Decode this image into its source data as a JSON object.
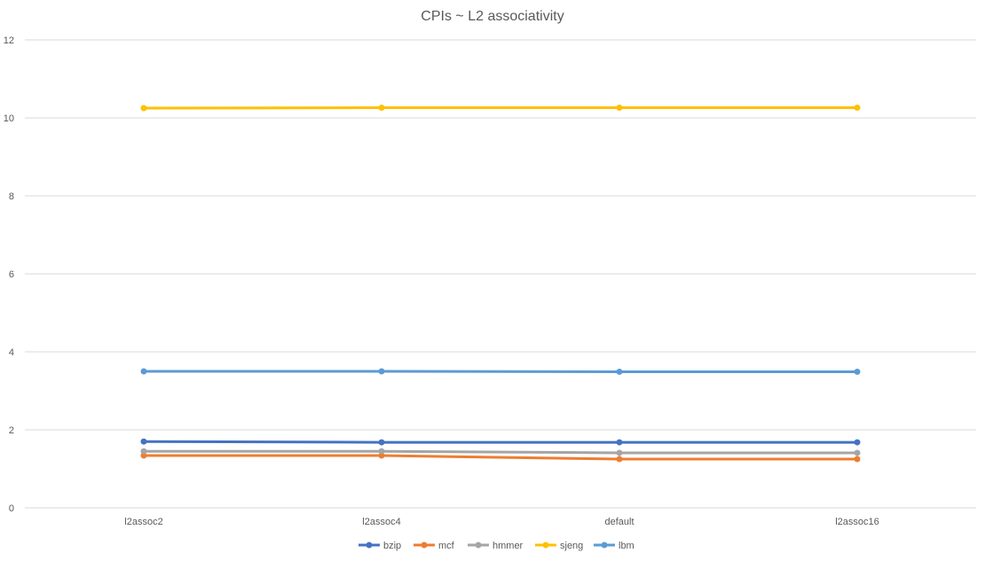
{
  "chart_data": {
    "type": "line",
    "title": "CPIs ~ L2 associativity",
    "xlabel": "",
    "ylabel": "",
    "categories": [
      "l2assoc2",
      "l2assoc4",
      "default",
      "l2assoc16"
    ],
    "ylim": [
      0,
      12
    ],
    "yticks": [
      0,
      2,
      4,
      6,
      8,
      10,
      12
    ],
    "grid": true,
    "legend_position": "bottom",
    "series": [
      {
        "name": "bzip",
        "color": "#4472c4",
        "values": [
          1.7,
          1.68,
          1.68,
          1.68
        ]
      },
      {
        "name": "mcf",
        "color": "#ed7d31",
        "values": [
          1.34,
          1.34,
          1.25,
          1.25
        ]
      },
      {
        "name": "hmmer",
        "color": "#a5a5a5",
        "values": [
          1.45,
          1.45,
          1.41,
          1.41
        ]
      },
      {
        "name": "sjeng",
        "color": "#ffc000",
        "values": [
          10.25,
          10.26,
          10.26,
          10.26
        ]
      },
      {
        "name": "lbm",
        "color": "#5b9bd5",
        "values": [
          3.5,
          3.5,
          3.49,
          3.49
        ]
      }
    ]
  }
}
